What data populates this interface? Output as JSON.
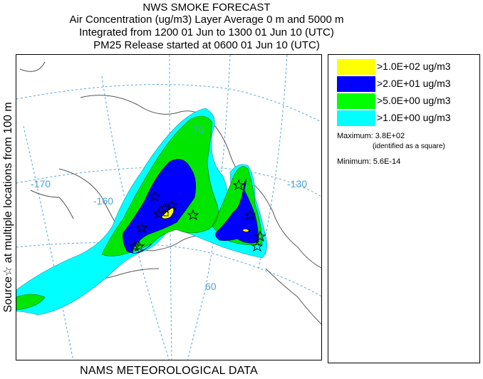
{
  "title_lines": [
    "NWS SMOKE FORECAST",
    "Air Concentration (ug/m3) Layer Average    0 m and  5000 m",
    "Integrated from 1200 01 Jun to 1300 01 Jun 10 (UTC)",
    "PM25 Release started at 0600 01 Jun 10 (UTC)"
  ],
  "side_label": "Source☆ at multiple locations    from   100 m",
  "footer": "NAMS METEOROLOGICAL DATA",
  "map": {
    "grid_labels": [
      "-170",
      "-160",
      "-130",
      "70",
      "60"
    ],
    "colors": {
      "coast": "#555555",
      "graticule": "#5aa7d8",
      "water": "#ffffff"
    }
  },
  "legend": {
    "items": [
      {
        "color": "#ffff00",
        "label": ">1.0E+02 ug/m3"
      },
      {
        "color": "#0000ff",
        "label": ">2.0E+01 ug/m3"
      },
      {
        "color": "#00ff00",
        "label": ">5.0E+00 ug/m3"
      },
      {
        "color": "#00ffff",
        "label": ">1.0E+00 ug/m3"
      }
    ],
    "maximum_label": "Maximum: 3.8E+02",
    "maximum_note": "(identified as a square)",
    "minimum_label": "Minimum: 5.6E-14"
  }
}
